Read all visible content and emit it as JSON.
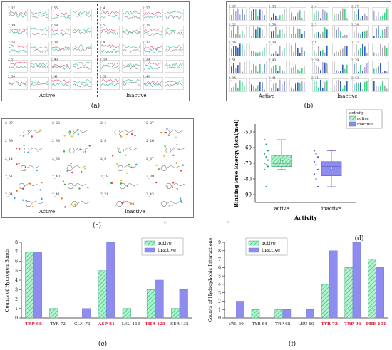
{
  "panel_letters": {
    "a": "(a)",
    "b": "(b)",
    "c": "(c)",
    "d": "(d)",
    "e": "(e)",
    "f": "(f)"
  },
  "group_labels": {
    "active": "Active",
    "inactive": "Inactive"
  },
  "tiny_labels": {
    "d": "(e)",
    "f": "(f)"
  },
  "traj_labels": {
    "active": [
      "2_37",
      "2_55",
      "2_39",
      "2_58",
      "2_14",
      "2_38",
      "2_51",
      "2_40",
      "2_34",
      "2_41"
    ],
    "inactive": [
      "2_4",
      "2_27",
      "2_5",
      "2_26",
      "2_9",
      "2_37",
      "2_19",
      "2_39",
      "2_21",
      "2_43"
    ]
  },
  "b_labels": {
    "active": [
      "2_37",
      "2_55",
      "2_22",
      "2_58",
      "2_14",
      "2_38",
      "2_51",
      "2_40",
      "2_34",
      "2_41"
    ],
    "inactive": [
      "2_4",
      "2_27",
      "2_5",
      "2_28",
      "2_9",
      "2_37",
      "2_19",
      "2_39",
      "2_21",
      "2_43"
    ]
  },
  "c_labels": {
    "active": [
      "2_37",
      "2_23",
      "2_39",
      "2_38",
      "2_14",
      "2_38",
      "2_51",
      "2_40",
      "2_34",
      "2_41"
    ],
    "inactive": [
      "2_4",
      "2_27",
      "2_5",
      "2_26",
      "2_9",
      "2_37",
      "2_19",
      "2_39",
      "2_21",
      "2_43"
    ]
  },
  "colors": {
    "active": "#3fd68a",
    "inactive": "#8f8cf0",
    "highlight": "#e0203a",
    "line_pink": "#e0507a",
    "line_teal": "#3aa8a8"
  },
  "chart_data": [
    {
      "id": "d",
      "type": "box",
      "ylabel": "Binding Free Energy (kcal/mol)",
      "xlabel": "Activity",
      "categories": [
        "active",
        "inactive"
      ],
      "ylim": [
        -95,
        -45
      ],
      "yticks": [
        -90,
        -80,
        -70,
        -60,
        -50
      ],
      "legend": {
        "title": "activity",
        "entries": [
          "active",
          "inactive"
        ],
        "placement": "top-right"
      },
      "boxes": [
        {
          "name": "active",
          "min": -74,
          "q1": -72,
          "median": -70,
          "q3": -65,
          "max": -55,
          "mean": -69,
          "points": [
            -55,
            -58,
            -62,
            -64,
            -66,
            -68,
            -70,
            -71,
            -72,
            -74,
            -85
          ]
        },
        {
          "name": "inactive",
          "min": -85,
          "q1": -78,
          "median": -72,
          "q3": -69,
          "max": -62,
          "mean": -73,
          "points": [
            -62,
            -64,
            -66,
            -69,
            -71,
            -74,
            -77,
            -80,
            -85
          ]
        }
      ]
    },
    {
      "id": "e",
      "type": "bar",
      "ylabel": "Counts of Hydrogen Bonds",
      "categories": [
        "TRP 68",
        "TYR 72",
        "GLN 73",
        "ASP 81",
        "LEU 116",
        "THR 121",
        "SER 135"
      ],
      "highlight": [
        "TRP 68",
        "ASP 81",
        "THR 121"
      ],
      "ylim": [
        0,
        8
      ],
      "yticks": [
        0,
        1,
        2,
        3,
        4,
        5,
        6,
        7,
        8
      ],
      "legend": {
        "entries": [
          "active",
          "inactive"
        ],
        "placement": "top-right"
      },
      "series": [
        {
          "name": "active",
          "values": [
            7,
            1,
            0,
            5,
            1,
            3,
            1
          ]
        },
        {
          "name": "inactive",
          "values": [
            7,
            0,
            1,
            8,
            0,
            4,
            3
          ]
        }
      ]
    },
    {
      "id": "f",
      "type": "bar",
      "ylabel": "Counts of Hydrophobic Interactions",
      "categories": [
        "VAL 60",
        "TYR 64",
        "TRP 68",
        "LEU 69",
        "TYR 72",
        "TRP 96",
        "PHE 101"
      ],
      "highlight": [
        "TYR 72",
        "TRP 96",
        "PHE 101"
      ],
      "ylim": [
        0,
        9
      ],
      "yticks": [
        0,
        1,
        2,
        3,
        4,
        5,
        6,
        7,
        8,
        9
      ],
      "legend": {
        "entries": [
          "active",
          "inactive"
        ],
        "placement": "top-left"
      },
      "series": [
        {
          "name": "active",
          "values": [
            0,
            1,
            1,
            0,
            4,
            6,
            7
          ]
        },
        {
          "name": "inactive",
          "values": [
            2,
            0,
            1,
            1,
            8,
            9,
            6
          ]
        }
      ]
    }
  ]
}
